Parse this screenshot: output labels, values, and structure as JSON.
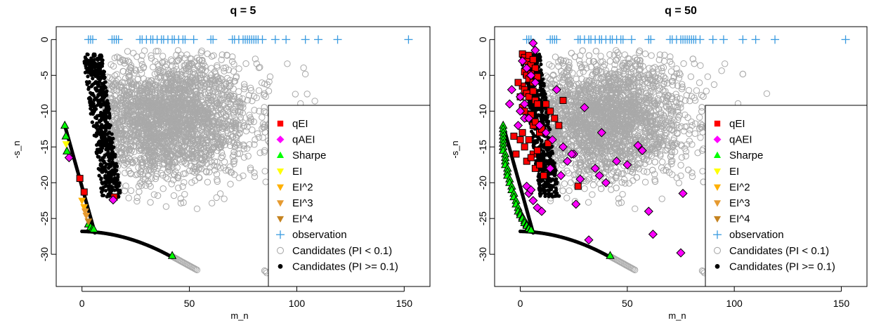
{
  "chart_data": [
    {
      "type": "scatter",
      "title": "q = 5",
      "xlabel": "m_n",
      "ylabel": "-s_n",
      "xlim": [
        -12,
        162
      ],
      "ylim": [
        -34.5,
        1.8
      ],
      "xticks": [
        0,
        50,
        100,
        150
      ],
      "yticks": [
        0,
        -5,
        -10,
        -15,
        -20,
        -25,
        -30
      ],
      "grid": false,
      "legend_position": "bottom-right",
      "legend": [
        {
          "label": "qEI",
          "color": "#ff0000",
          "marker": "square"
        },
        {
          "label": "qAEI",
          "color": "#ff00ff",
          "marker": "diamond"
        },
        {
          "label": "Sharpe",
          "color": "#00ff00",
          "marker": "triangle-up"
        },
        {
          "label": "EI",
          "color": "#ffff00",
          "marker": "triangle-down"
        },
        {
          "label": "EI^2",
          "color": "#ffb000",
          "marker": "triangle-down"
        },
        {
          "label": "EI^3",
          "color": "#e69a30",
          "marker": "triangle-down"
        },
        {
          "label": "EI^4",
          "color": "#c58320",
          "marker": "triangle-down"
        },
        {
          "label": "observation",
          "color": "#3a9be0",
          "marker": "plus"
        },
        {
          "label": "Candidates (PI < 0.1)",
          "color": "#a9a9a9",
          "marker": "open-circle"
        },
        {
          "label": "Candidates (PI >= 0.1)",
          "color": "#000000",
          "marker": "filled-circle"
        }
      ],
      "series": [
        {
          "name": "observation",
          "x": [
            3,
            4,
            5,
            14,
            15,
            16,
            17,
            27,
            28,
            30,
            32,
            33,
            35,
            37,
            38,
            40,
            42,
            43,
            45,
            47,
            48,
            52,
            60,
            61,
            70,
            71,
            73,
            75,
            76,
            77,
            78,
            79,
            80,
            81,
            82,
            84,
            90,
            95,
            104,
            110,
            119,
            152
          ],
          "y": [
            0,
            0,
            0,
            0,
            0,
            0,
            0,
            0,
            0,
            0,
            0,
            0,
            0,
            0,
            0,
            0,
            0,
            0,
            0,
            0,
            0,
            0,
            0,
            0,
            0,
            0,
            0,
            0,
            0,
            0,
            0,
            0,
            0,
            0,
            0,
            0,
            0,
            0,
            0,
            0,
            0,
            0
          ]
        },
        {
          "name": "qEI",
          "x": [
            -1,
            1,
            15
          ],
          "y": [
            -19.4,
            -21.3,
            -22
          ]
        },
        {
          "name": "qAEI",
          "x": [
            -6,
            14.5
          ],
          "y": [
            -16.5,
            -22.4
          ]
        },
        {
          "name": "Sharpe",
          "x": [
            -8,
            -7.5,
            -7,
            3,
            4,
            5,
            5.5,
            42
          ],
          "y": [
            -12,
            -13.5,
            -15.6,
            -25.8,
            -26.2,
            -26.4,
            -26.5,
            -30.2
          ]
        },
        {
          "name": "EI",
          "x": [
            -7.4
          ],
          "y": [
            -14.6
          ]
        },
        {
          "name": "EI^2",
          "x": [
            0,
            1
          ],
          "y": [
            -22.5,
            -23.4
          ]
        },
        {
          "name": "EI^3",
          "x": [
            1.5,
            2
          ],
          "y": [
            -24,
            -24.6
          ]
        },
        {
          "name": "EI^4",
          "x": [
            3
          ],
          "y": [
            -25.4
          ]
        }
      ]
    },
    {
      "type": "scatter",
      "title": "q = 50",
      "xlabel": "m_n",
      "ylabel": "-s_n",
      "xlim": [
        -12,
        162
      ],
      "ylim": [
        -34.5,
        1.8
      ],
      "xticks": [
        0,
        50,
        100,
        150
      ],
      "yticks": [
        0,
        -5,
        -10,
        -15,
        -20,
        -25,
        -30
      ],
      "grid": false,
      "legend_position": "bottom-right",
      "legend": [
        {
          "label": "qEI",
          "color": "#ff0000",
          "marker": "square"
        },
        {
          "label": "qAEI",
          "color": "#ff00ff",
          "marker": "diamond"
        },
        {
          "label": "Sharpe",
          "color": "#00ff00",
          "marker": "triangle-up"
        },
        {
          "label": "EI",
          "color": "#ffff00",
          "marker": "triangle-down"
        },
        {
          "label": "EI^2",
          "color": "#ffb000",
          "marker": "triangle-down"
        },
        {
          "label": "EI^3",
          "color": "#e69a30",
          "marker": "triangle-down"
        },
        {
          "label": "EI^4",
          "color": "#c58320",
          "marker": "triangle-down"
        },
        {
          "label": "observation",
          "color": "#3a9be0",
          "marker": "plus"
        },
        {
          "label": "Candidates (PI < 0.1)",
          "color": "#a9a9a9",
          "marker": "open-circle"
        },
        {
          "label": "Candidates (PI >= 0.1)",
          "color": "#000000",
          "marker": "filled-circle"
        }
      ],
      "series": [
        {
          "name": "observation",
          "x": [
            3,
            4,
            5,
            14,
            15,
            16,
            17,
            27,
            28,
            30,
            32,
            33,
            35,
            37,
            38,
            40,
            42,
            43,
            45,
            47,
            48,
            52,
            60,
            61,
            70,
            71,
            73,
            75,
            76,
            77,
            78,
            79,
            80,
            81,
            82,
            84,
            90,
            95,
            104,
            110,
            119,
            152
          ],
          "y": [
            0,
            0,
            0,
            0,
            0,
            0,
            0,
            0,
            0,
            0,
            0,
            0,
            0,
            0,
            0,
            0,
            0,
            0,
            0,
            0,
            0,
            0,
            0,
            0,
            0,
            0,
            0,
            0,
            0,
            0,
            0,
            0,
            0,
            0,
            0,
            0,
            0,
            0,
            0,
            0,
            0,
            0
          ]
        },
        {
          "name": "qEI",
          "x": [
            1,
            2,
            3,
            4,
            5,
            6,
            7,
            2,
            3,
            4,
            5,
            6,
            8,
            1,
            2,
            3,
            4,
            6,
            7,
            8,
            -1,
            0,
            1,
            2,
            3,
            5,
            6,
            7,
            9,
            10,
            0,
            2,
            4,
            6,
            8,
            12,
            14,
            16,
            18,
            1,
            3,
            5,
            7,
            9,
            -3,
            -2,
            13,
            11,
            20,
            27
          ],
          "y": [
            -2,
            -2.5,
            -3,
            -2.2,
            -3.5,
            -2.8,
            -4,
            -4.5,
            -5,
            -5.5,
            -4.8,
            -6,
            -5.2,
            -6.5,
            -7,
            -7.5,
            -8,
            -7.2,
            -8.5,
            -9,
            -6,
            -8,
            -9.5,
            -10,
            -11,
            -10.5,
            -12,
            -11.5,
            -13,
            -12.5,
            -14,
            -15,
            -14,
            -16,
            -15.5,
            -9,
            -10,
            -11,
            -12,
            -13,
            -17,
            -16.5,
            -18,
            -17.5,
            -13.5,
            -16,
            -14.5,
            -19,
            -8.5,
            -20.5
          ]
        },
        {
          "name": "qAEI",
          "x": [
            1,
            3,
            5,
            7,
            -5,
            -4,
            0,
            2,
            9,
            12,
            15,
            20,
            25,
            30,
            38,
            40,
            45,
            50,
            55,
            57,
            60,
            62,
            75,
            76,
            3,
            4,
            6,
            8,
            10,
            14,
            17,
            19,
            22,
            24,
            26,
            28,
            32,
            35,
            37,
            -1,
            0,
            2,
            4,
            5,
            6,
            7
          ],
          "y": [
            -3,
            -4,
            -5,
            -6,
            -9,
            -7,
            -10,
            -11,
            -12,
            -13,
            -14,
            -15,
            -16,
            -9.5,
            -13,
            -20,
            -17,
            -17.5,
            -14.8,
            -15.5,
            -24,
            -27.2,
            -29.8,
            -21.5,
            -20.5,
            -21.5,
            -22.5,
            -23.5,
            -24,
            -18,
            -7,
            -19,
            -17,
            -16,
            -23,
            -19.5,
            -28,
            -18,
            -19,
            -12,
            -8,
            -9,
            -11,
            -21,
            -0.5,
            -1.5
          ]
        },
        {
          "name": "Sharpe",
          "x": [
            -8,
            -8,
            -8,
            -8,
            -8,
            -8,
            -8,
            -8,
            -7,
            -7,
            -7,
            -7,
            -6,
            -6,
            -6,
            -5,
            -5,
            -4,
            -4,
            -3,
            -3,
            -2,
            -2,
            -1,
            -1,
            0,
            0,
            1,
            1,
            2,
            2,
            3,
            3,
            4,
            4,
            5,
            5,
            42
          ],
          "y": [
            -12,
            -12.5,
            -13,
            -13.5,
            -14,
            -14.5,
            -15,
            -15.5,
            -16,
            -16.5,
            -17,
            -17.5,
            -18,
            -18.5,
            -19,
            -19.5,
            -20,
            -20.5,
            -21,
            -21.5,
            -22,
            -22.5,
            -23,
            -23.5,
            -24,
            -24.2,
            -24.5,
            -24.8,
            -25,
            -25.3,
            -25.6,
            -25.8,
            -26,
            -26.2,
            -26.4,
            -26.5,
            -26.6,
            -30.2
          ]
        }
      ]
    }
  ]
}
